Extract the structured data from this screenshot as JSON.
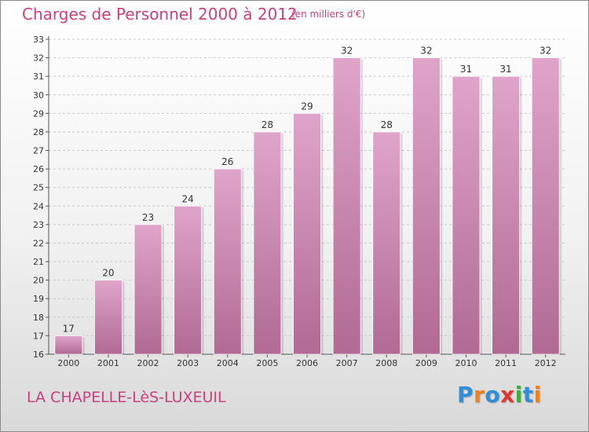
{
  "header": {
    "title": "Charges de Personnel 2000 à 2012",
    "unit": "(en milliers d'€)"
  },
  "footer": {
    "city": "LA CHAPELLE-LèS-LUXEUIL",
    "logo": "Proxiti"
  },
  "colors": {
    "title": "#c8407e",
    "bar_top": "#e0a4ca",
    "bar_bottom": "#b06a93",
    "logo": [
      "#2e8fd6",
      "#f07f1d",
      "#2e8fd6",
      "#e3342f",
      "#3fae3f",
      "#2e8fd6",
      "#f07f1d"
    ]
  },
  "chart_data": {
    "type": "bar",
    "categories": [
      "2000",
      "2001",
      "2002",
      "2003",
      "2004",
      "2005",
      "2006",
      "2007",
      "2008",
      "2009",
      "2010",
      "2011",
      "2012"
    ],
    "values": [
      17,
      20,
      23,
      24,
      26,
      28,
      29,
      32,
      28,
      32,
      31,
      31,
      32
    ],
    "title": "Charges de Personnel 2000 à 2012",
    "xlabel": "",
    "ylabel": "",
    "ylim": [
      16,
      33
    ],
    "yticks": [
      16,
      17,
      18,
      19,
      20,
      21,
      22,
      23,
      24,
      25,
      26,
      27,
      28,
      29,
      30,
      31,
      32,
      33
    ],
    "grid": true
  }
}
